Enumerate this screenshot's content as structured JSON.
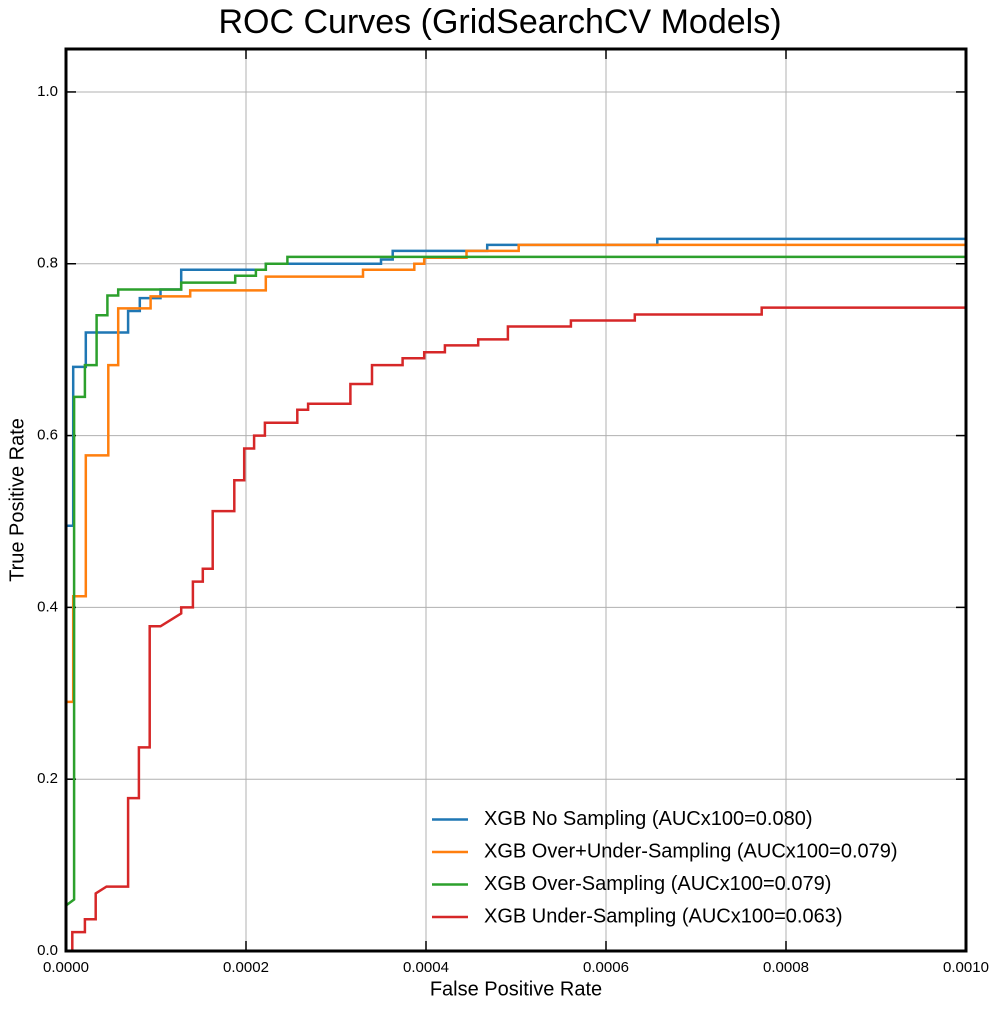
{
  "chart_data": {
    "type": "line",
    "title": "ROC Curves (GridSearchCV Models)",
    "x_label": "False Positive Rate",
    "y_label": "True Positive Rate",
    "xlim": [
      0,
      0.001
    ],
    "ylim": [
      0,
      1.05
    ],
    "xticks": [
      {
        "value": 0,
        "label": "0.0000"
      },
      {
        "value": 0.0002,
        "label": "0.0002"
      },
      {
        "value": 0.0004,
        "label": "0.0004"
      },
      {
        "value": 0.0006,
        "label": "0.0006"
      },
      {
        "value": 0.0008,
        "label": "0.0008"
      },
      {
        "value": 0.001,
        "label": "0.0010"
      }
    ],
    "yticks": [
      {
        "value": 0,
        "label": "0.0"
      },
      0.2,
      0.4,
      0.6,
      0.8,
      {
        "value": 1,
        "label": "1.0"
      }
    ],
    "grid": true,
    "legend_position": "lower right",
    "series": [
      {
        "name": "XGB No Sampling (AUCx100=0.080)",
        "color": "#1f77b4",
        "x": [
          0,
          8e-06,
          8e-06,
          2.2e-05,
          2.2e-05,
          6.9e-05,
          6.9e-05,
          8.2e-05,
          8.2e-05,
          0.000105,
          0.000105,
          0.000128,
          0.000128,
          0.000222,
          0.000222,
          0.00035,
          0.00035,
          0.000363,
          0.000363,
          0.000468,
          0.000468,
          0.000657,
          0.000657,
          0.001
        ],
        "values": [
          0.495,
          0.495,
          0.68,
          0.68,
          0.72,
          0.72,
          0.745,
          0.745,
          0.76,
          0.76,
          0.77,
          0.77,
          0.793,
          0.793,
          0.8,
          0.8,
          0.805,
          0.805,
          0.815,
          0.815,
          0.822,
          0.822,
          0.829,
          0.829
        ]
      },
      {
        "name": "XGB Over+Under-Sampling (AUCx100=0.079)",
        "color": "#ff7f0e",
        "x": [
          0,
          8e-06,
          8e-06,
          2.2e-05,
          2.2e-05,
          4.7e-05,
          4.7e-05,
          5.8e-05,
          5.8e-05,
          9.4e-05,
          9.4e-05,
          0.000138,
          0.000138,
          0.000222,
          0.000222,
          0.00033,
          0.00033,
          0.000387,
          0.000387,
          0.000398,
          0.000398,
          0.000445,
          0.000445,
          0.000503,
          0.000503,
          0.001
        ],
        "values": [
          0.29,
          0.29,
          0.413,
          0.413,
          0.577,
          0.577,
          0.682,
          0.682,
          0.748,
          0.748,
          0.762,
          0.762,
          0.769,
          0.769,
          0.785,
          0.785,
          0.793,
          0.793,
          0.8,
          0.8,
          0.807,
          0.807,
          0.815,
          0.815,
          0.822,
          0.822
        ]
      },
      {
        "name": "XGB Over-Sampling (AUCx100=0.079)",
        "color": "#2ca02c",
        "x": [
          0,
          9e-06,
          9e-06,
          2.1e-05,
          2.1e-05,
          3.4e-05,
          3.4e-05,
          4.6e-05,
          4.6e-05,
          5.8e-05,
          5.8e-05,
          0.000128,
          0.000128,
          0.000188,
          0.000188,
          0.000211,
          0.000211,
          0.000222,
          0.000222,
          0.000246,
          0.000246,
          0.001
        ],
        "values": [
          0.053,
          0.06,
          0.645,
          0.645,
          0.682,
          0.682,
          0.74,
          0.74,
          0.763,
          0.763,
          0.77,
          0.77,
          0.778,
          0.778,
          0.786,
          0.786,
          0.793,
          0.793,
          0.8,
          0.8,
          0.808,
          0.808
        ]
      },
      {
        "name": "XGB Under-Sampling (AUCx100=0.063)",
        "color": "#d62728",
        "x": [
          7e-06,
          7e-06,
          2.1e-05,
          2.1e-05,
          3.3e-05,
          3.3e-05,
          4.5e-05,
          6.9e-05,
          6.9e-05,
          8.1e-05,
          8.1e-05,
          9.3e-05,
          9.3e-05,
          0.000105,
          0.000128,
          0.000128,
          0.000141,
          0.000141,
          0.000152,
          0.000152,
          0.000163,
          0.000163,
          0.000187,
          0.000187,
          0.000198,
          0.000198,
          0.000209,
          0.000209,
          0.000221,
          0.000221,
          0.000257,
          0.000257,
          0.000269,
          0.000269,
          0.000316,
          0.000316,
          0.00034,
          0.00034,
          0.000374,
          0.000374,
          0.000398,
          0.000398,
          0.000421,
          0.000421,
          0.000458,
          0.000458,
          0.000491,
          0.000491,
          0.000561,
          0.000561,
          0.000632,
          0.000632,
          0.000773,
          0.000773,
          0.001
        ],
        "values": [
          0,
          0.022,
          0.022,
          0.037,
          0.037,
          0.067,
          0.075,
          0.075,
          0.178,
          0.178,
          0.237,
          0.237,
          0.378,
          0.378,
          0.393,
          0.4,
          0.4,
          0.43,
          0.43,
          0.445,
          0.445,
          0.512,
          0.512,
          0.548,
          0.548,
          0.585,
          0.585,
          0.6,
          0.6,
          0.615,
          0.615,
          0.63,
          0.63,
          0.637,
          0.637,
          0.66,
          0.66,
          0.682,
          0.682,
          0.69,
          0.69,
          0.697,
          0.697,
          0.705,
          0.705,
          0.712,
          0.712,
          0.727,
          0.727,
          0.734,
          0.734,
          0.741,
          0.741,
          0.749,
          0.749
        ]
      }
    ]
  }
}
